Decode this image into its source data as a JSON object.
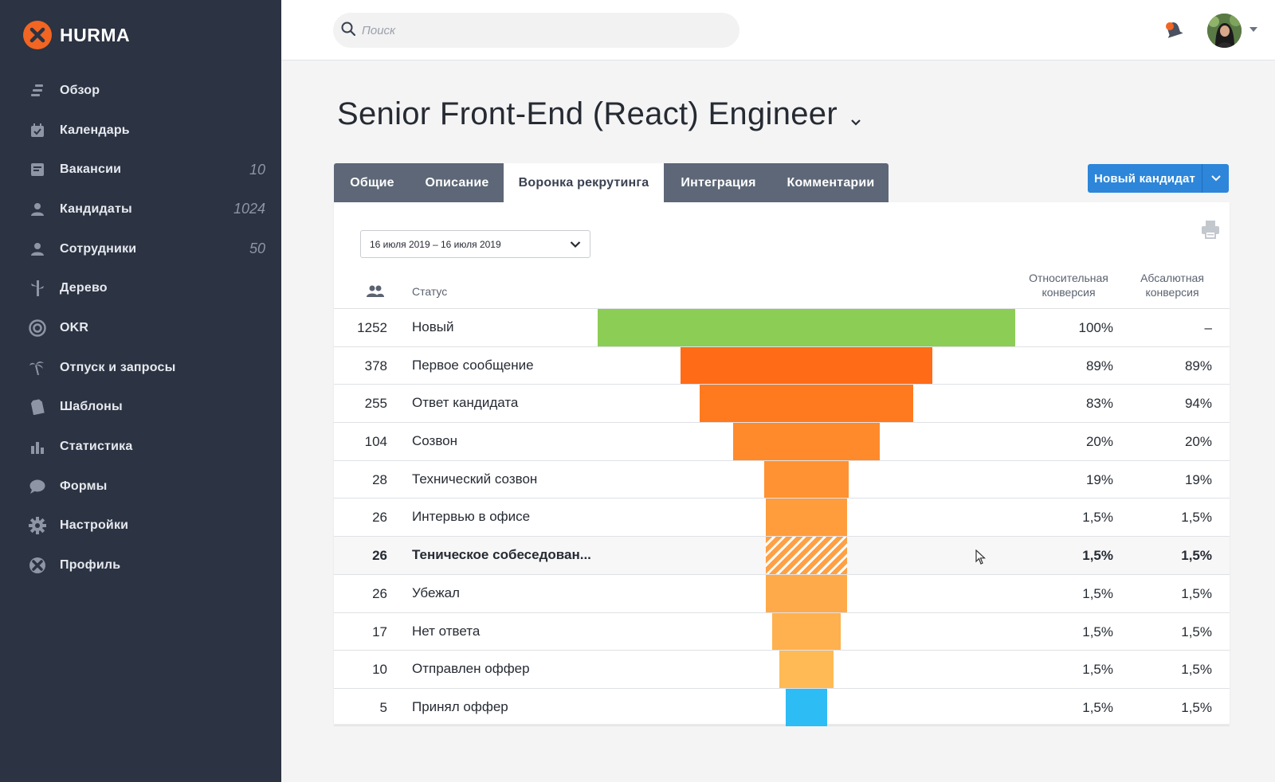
{
  "app": {
    "name": "HURMA"
  },
  "sidebar": {
    "items": [
      {
        "label": "Обзор",
        "icon": "overview-icon",
        "count": ""
      },
      {
        "label": "Календарь",
        "icon": "calendar-icon",
        "count": ""
      },
      {
        "label": "Вакансии",
        "icon": "vacancies-icon",
        "count": "10"
      },
      {
        "label": "Кандидаты",
        "icon": "candidates-icon",
        "count": "1024"
      },
      {
        "label": "Сотрудники",
        "icon": "employees-icon",
        "count": "50"
      },
      {
        "label": "Дерево",
        "icon": "tree-icon",
        "count": ""
      },
      {
        "label": "OKR",
        "icon": "okr-target-icon",
        "count": ""
      },
      {
        "label": "Отпуск и запросы",
        "icon": "vacation-palm-icon",
        "count": ""
      },
      {
        "label": "Шаблоны",
        "icon": "templates-icon",
        "count": ""
      },
      {
        "label": "Статистика",
        "icon": "statistics-icon",
        "count": ""
      },
      {
        "label": "Формы",
        "icon": "forms-chat-icon",
        "count": ""
      },
      {
        "label": "Настройки",
        "icon": "settings-gear-icon",
        "count": ""
      },
      {
        "label": "Профиль",
        "icon": "profile-icon",
        "count": ""
      }
    ]
  },
  "search": {
    "placeholder": "Поиск",
    "value": ""
  },
  "page": {
    "title": "Senior Front-End (React) Engineer"
  },
  "tabs": [
    {
      "label": "Общие",
      "active": false
    },
    {
      "label": "Описание",
      "active": false
    },
    {
      "label": "Воронка рекрутинга",
      "active": true
    },
    {
      "label": "Интеграция",
      "active": false
    },
    {
      "label": "Комментарии",
      "active": false
    }
  ],
  "actions": {
    "new_candidate": "Новый кандидат"
  },
  "funnel": {
    "date_range": "16 июля 2019 – 16 июля 2019",
    "headers": {
      "status": "Статус",
      "relative_line1": "Относительная",
      "relative_line2": "конверсия",
      "absolute_line1": "Абсалютная",
      "absolute_line2": "конверсия"
    },
    "max_count": 1252,
    "rows": [
      {
        "count": "1252",
        "status": "Новый",
        "relative": "100%",
        "absolute": "–",
        "color": "#8ccd55",
        "pattern": false,
        "highlight": false
      },
      {
        "count": "378",
        "status": "Первое сообщение",
        "relative": "89%",
        "absolute": "89%",
        "color": "#ff6b17",
        "pattern": false,
        "highlight": false
      },
      {
        "count": "255",
        "status": "Ответ кандидата",
        "relative": "83%",
        "absolute": "94%",
        "color": "#ff7a1f",
        "pattern": false,
        "highlight": false
      },
      {
        "count": "104",
        "status": "Созвон",
        "relative": "20%",
        "absolute": "20%",
        "color": "#ff8a2c",
        "pattern": false,
        "highlight": false
      },
      {
        "count": "28",
        "status": "Технический созвон",
        "relative": "19%",
        "absolute": "19%",
        "color": "#ff9232",
        "pattern": false,
        "highlight": false
      },
      {
        "count": "26",
        "status": "Интервью в офисе",
        "relative": "1,5%",
        "absolute": "1,5%",
        "color": "#ff9d3d",
        "pattern": false,
        "highlight": false
      },
      {
        "count": "26",
        "status": "Теническое собеседован...",
        "relative": "1,5%",
        "absolute": "1,5%",
        "color": "#ffa044",
        "pattern": true,
        "highlight": true
      },
      {
        "count": "26",
        "status": "Убежал",
        "relative": "1,5%",
        "absolute": "1,5%",
        "color": "#ffaa4a",
        "pattern": false,
        "highlight": false
      },
      {
        "count": "17",
        "status": "Нет ответа",
        "relative": "1,5%",
        "absolute": "1,5%",
        "color": "#ffb04f",
        "pattern": false,
        "highlight": false
      },
      {
        "count": "10",
        "status": "Отправлен оффер",
        "relative": "1,5%",
        "absolute": "1,5%",
        "color": "#ffba55",
        "pattern": false,
        "highlight": false
      },
      {
        "count": "5",
        "status": "Принял оффер",
        "relative": "1,5%",
        "absolute": "1,5%",
        "color": "#2ebcf5",
        "pattern": false,
        "highlight": false
      }
    ]
  }
}
